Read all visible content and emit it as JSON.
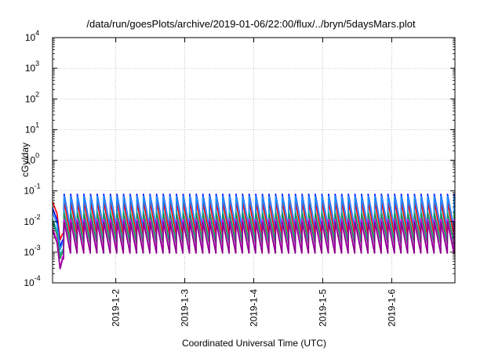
{
  "chart_data": {
    "type": "line",
    "title": "/data/run/goesPlots/archive/2019-01-06/22:00/flux/../bryn/5daysMars.plot",
    "xlabel": "Coordinated Universal Time (UTC)",
    "ylabel": "cGy/day",
    "yscale": "log",
    "ylim": [
      0.0001,
      10000
    ],
    "xlim": [
      "2019-01-01T02:00",
      "2019-01-06T22:00"
    ],
    "grid": true,
    "y_tick_labels": [
      {
        "value": 0.0001,
        "base": "10",
        "exp": "-4"
      },
      {
        "value": 0.001,
        "base": "10",
        "exp": "-3"
      },
      {
        "value": 0.01,
        "base": "10",
        "exp": "-2"
      },
      {
        "value": 0.1,
        "base": "10",
        "exp": "-1"
      },
      {
        "value": 1,
        "base": "10",
        "exp": "0"
      },
      {
        "value": 10,
        "base": "10",
        "exp": "1"
      },
      {
        "value": 100,
        "base": "10",
        "exp": "2"
      },
      {
        "value": 1000,
        "base": "10",
        "exp": "3"
      },
      {
        "value": 10000,
        "base": "10",
        "exp": "4"
      }
    ],
    "x_ticks": [
      {
        "value": "2019-01-02T00:00",
        "label": "2019-1-2"
      },
      {
        "value": "2019-01-03T00:00",
        "label": "2019-1-3"
      },
      {
        "value": "2019-01-04T00:00",
        "label": "2019-1-4"
      },
      {
        "value": "2019-01-05T00:00",
        "label": "2019-1-5"
      },
      {
        "value": "2019-01-06T00:00",
        "label": "2019-1-6"
      }
    ],
    "cycle_hours": 2.3,
    "cycles_start": "2019-01-01T06:00",
    "early_segment": {
      "start": "2019-01-01T02:00",
      "end": "2019-01-01T05:30"
    },
    "series": [
      {
        "color": "#ff0000",
        "peak": 0.045,
        "trough": 0.0035,
        "early_start": 0.045,
        "early_min": 0.0025,
        "early_end": 0.004
      },
      {
        "color": "#0000ff",
        "peak": 0.08,
        "trough": 0.006,
        "early_start": 0.028,
        "early_min": 0.0015,
        "early_end": 0.0025
      },
      {
        "color": "#1e90ff",
        "peak": 0.07,
        "trough": 0.006,
        "early_start": 0.02,
        "early_min": 0.0012,
        "early_end": 0.002
      },
      {
        "color": "#00b0b0",
        "peak": 0.022,
        "trough": 0.0022,
        "early_start": 0.012,
        "early_min": 0.0008,
        "early_end": 0.0012
      },
      {
        "color": "#2e8b57",
        "peak": 0.018,
        "trough": 0.0018,
        "early_start": 0.009,
        "early_min": 0.0006,
        "early_end": 0.001
      },
      {
        "color": "#ff00ff",
        "peak": 0.012,
        "trough": 0.001,
        "early_start": 0.006,
        "early_min": 0.0003,
        "early_end": 0.0007
      },
      {
        "color": "#8b008b",
        "peak": 0.01,
        "trough": 0.0009,
        "early_start": 0.005,
        "early_min": 0.00028,
        "early_end": 0.0006
      }
    ]
  }
}
